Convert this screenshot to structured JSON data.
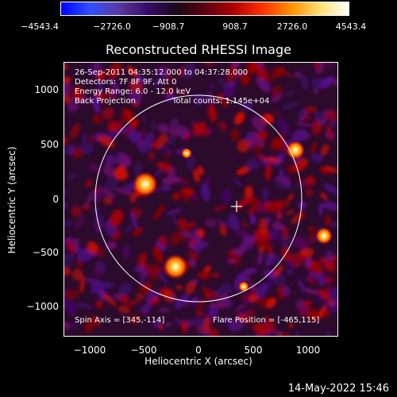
{
  "colorbar": {
    "ticks": [
      "−4543.4",
      "−2726.0",
      "−908.7",
      "908.7",
      "2726.0",
      "4543.4"
    ]
  },
  "title": "Reconstructed RHESSI Image",
  "info": {
    "time": "26-Sep-2011 04:35:12.000 to 04:37:28.000",
    "detectors": "Detectors: 7F 8F 9F, Att 0",
    "energy": "Energy Range: 6.0 - 12.0 keV",
    "method": "Back Projection",
    "counts": "Total counts: 1.145e+04",
    "spin_axis": "Spin Axis = [345,-114]",
    "flare_position": "Flare Position = [-465,115]"
  },
  "axes": {
    "xlabel": "Heliocentric X (arcsec)",
    "ylabel": "Heliocentric Y (arcsec)",
    "xticks": [
      "−1000",
      "−500",
      "0",
      "500",
      "1000"
    ],
    "yticks": [
      "1000",
      "500",
      "0",
      "−500",
      "−1000"
    ]
  },
  "timestamp": "14-May-2022 15:46",
  "colors": {
    "background": "#000000",
    "foreground": "#ffffff",
    "colormap": [
      "#0000ff",
      "#1a0f6e",
      "#3a0a7a",
      "#2b0a2b",
      "#6a0000",
      "#c80000",
      "#ff7000",
      "#ffd040",
      "#ffffff"
    ]
  }
}
